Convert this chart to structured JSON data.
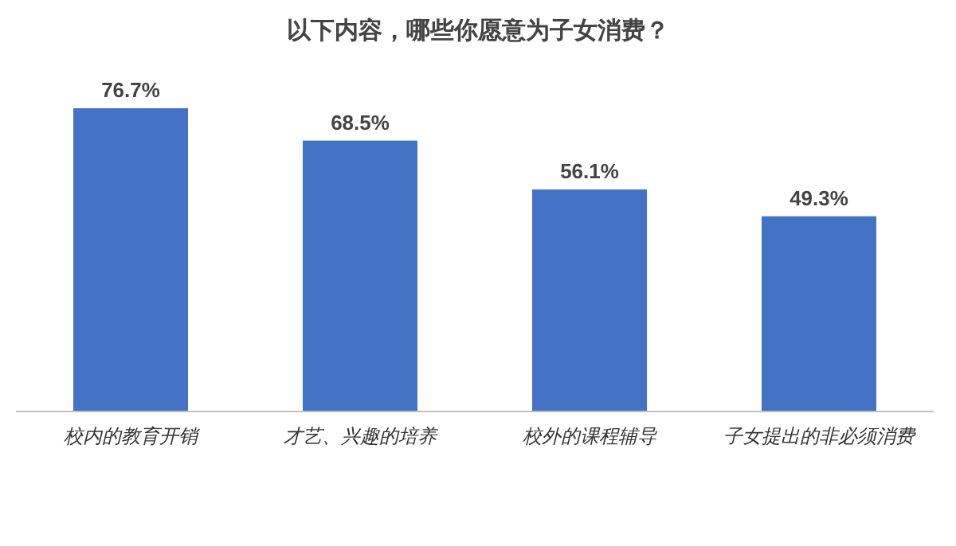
{
  "chart_data": {
    "type": "bar",
    "title": "以下内容，哪些你愿意为子女消费？",
    "categories": [
      "校内的教育开销",
      "才艺、兴趣的培养",
      "校外的课程辅导",
      "子女提出的非必须消费"
    ],
    "values": [
      76.7,
      68.5,
      56.1,
      49.3
    ],
    "value_labels": [
      "76.7%",
      "68.5%",
      "56.1%",
      "49.3%"
    ],
    "color": "#4472c4"
  }
}
